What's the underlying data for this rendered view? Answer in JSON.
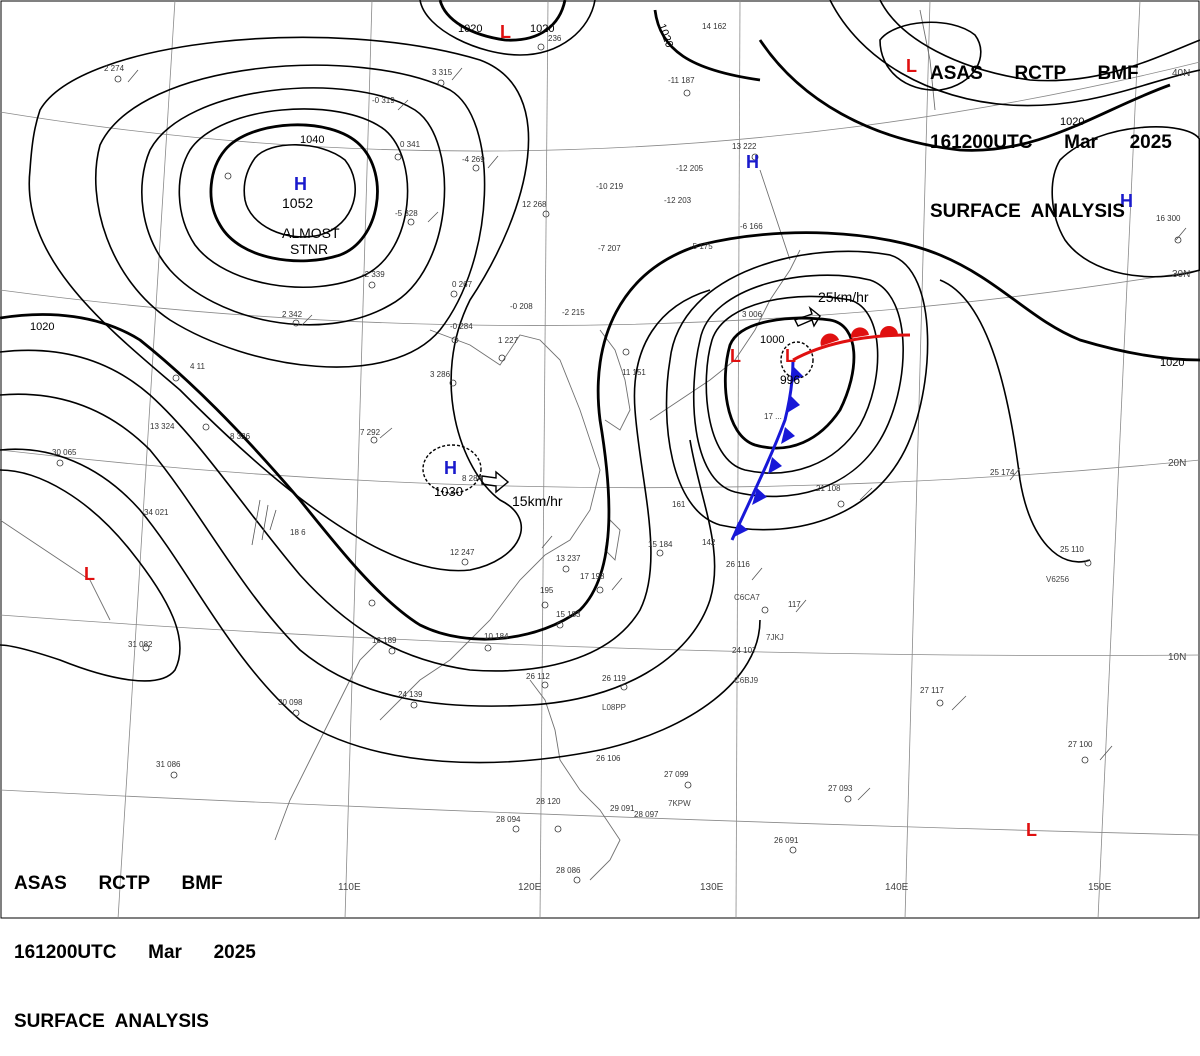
{
  "header": {
    "line1": "ASAS      RCTP      BMF",
    "line2": "161200UTC      Mar      2025",
    "line3": "SURFACE  ANALYSIS"
  },
  "isobar_labels": [
    "1020",
    "1020",
    "1020",
    "1020",
    "1040",
    "1000",
    "1020",
    "1020"
  ],
  "pressure_centers": [
    {
      "type": "H",
      "value": "1052",
      "color": "#1a1acc"
    },
    {
      "type": "H",
      "value": "1030",
      "color": "#1a1acc"
    },
    {
      "type": "H",
      "value": "",
      "color": "#1a1acc"
    },
    {
      "type": "H",
      "value": "",
      "color": "#1a1acc"
    },
    {
      "type": "L",
      "value": "996",
      "color": "#e01010"
    },
    {
      "type": "L",
      "value": "",
      "color": "#e01010"
    },
    {
      "type": "L",
      "value": "",
      "color": "#e01010"
    },
    {
      "type": "L",
      "value": "",
      "color": "#e01010"
    },
    {
      "type": "L",
      "value": "",
      "color": "#e01010"
    }
  ],
  "annotations": {
    "almost": "ALMOST",
    "stnr": "STNR",
    "speed_1": "25km/hr",
    "speed_2": "15km/hr"
  },
  "lon_labels": [
    "110E",
    "120E",
    "130E",
    "140E",
    "150E"
  ],
  "lat_labels": [
    "40N",
    "30N",
    "20N",
    "10N"
  ],
  "ship_ids": [
    "C6CA7",
    "7JKJ",
    "C6BJ9",
    "L08PP",
    "V6256",
    "7KPW"
  ],
  "station_obs": [
    "2 274",
    "3 315",
    "-0 319",
    "0 341",
    "-4 269",
    "-5 328",
    "-2 339",
    "2 342",
    "0 267",
    "-0 284",
    "3 286",
    "7 292",
    "8 326",
    "4 11",
    "13 324",
    "30 065",
    "34 021",
    "18 6",
    "12 247",
    "13 237",
    "17 198",
    "15 183",
    "16 189",
    "24 139",
    "30 098",
    "31 082",
    "31 086",
    "28 094",
    "28 120",
    "28 086",
    "26 112",
    "26 119",
    "27 099",
    "27 093",
    "26 091",
    "27 100",
    "27 117",
    "25 174",
    "25 110",
    "16 300",
    "14 162",
    "-11 187",
    "-12 205",
    "-10 219",
    "-12 203",
    "12 268",
    "-7 207",
    "-5 175",
    "-6 166",
    "-0 208",
    "-2 215",
    "3 006",
    "13 222",
    "236",
    "10 184",
    "15 184",
    "142",
    "26 116",
    "117",
    "24 107",
    "161",
    "21 108",
    "8 284",
    "1 227",
    "11 151",
    "17 ...",
    "28 097",
    "29 091",
    "26 106",
    "195"
  ],
  "colors": {
    "isobar": "#000000",
    "high": "#1a1acc",
    "low": "#e01010",
    "cold_front": "#1818d8",
    "warm_front": "#e01010",
    "coast": "#707070",
    "grid": "#8a8a8a"
  }
}
